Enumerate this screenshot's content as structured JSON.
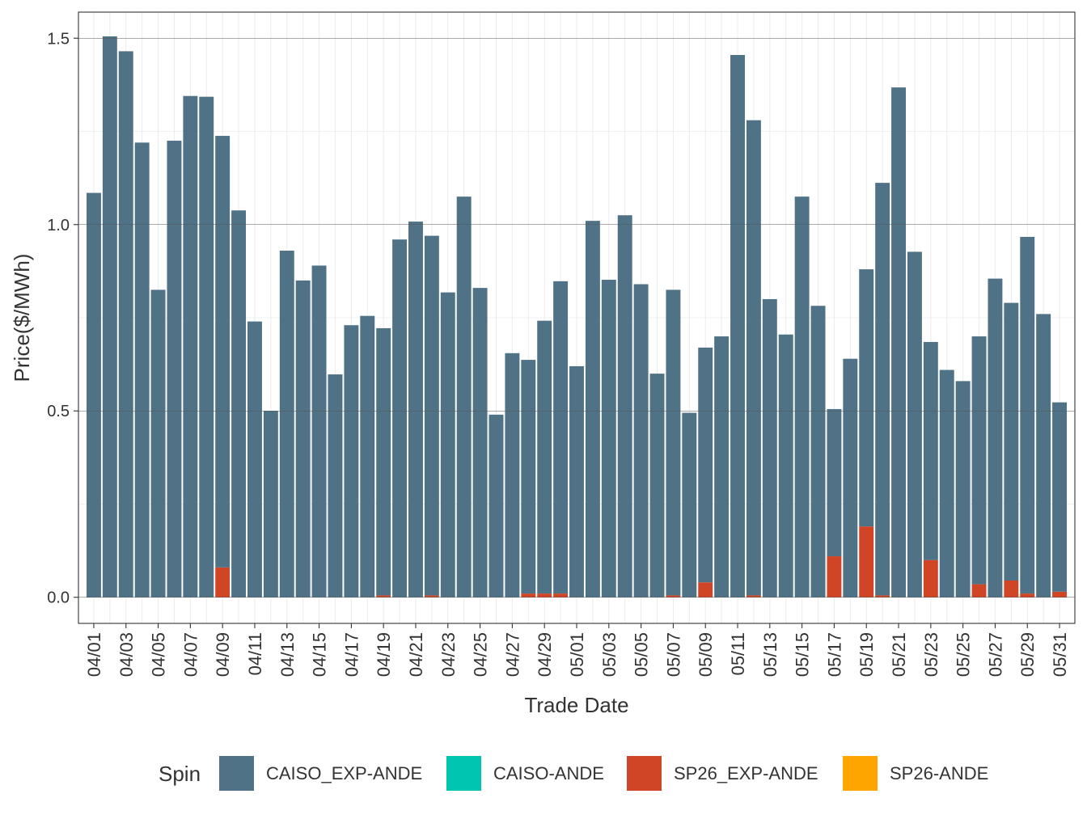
{
  "chart_data": {
    "type": "bar",
    "stacked": true,
    "title": "",
    "xlabel": "Trade Date",
    "ylabel": "Price($/MWh)",
    "ylim": [
      -0.07,
      1.57
    ],
    "yticks": [
      "0.0",
      "0.5",
      "1.0",
      "1.5"
    ],
    "grid": true,
    "legend_position": "bottom",
    "legend_title": "Spin",
    "categories": [
      "04/01",
      "04/02",
      "04/03",
      "04/04",
      "04/05",
      "04/06",
      "04/07",
      "04/08",
      "04/09",
      "04/10",
      "04/11",
      "04/12",
      "04/13",
      "04/14",
      "04/15",
      "04/16",
      "04/17",
      "04/18",
      "04/19",
      "04/20",
      "04/21",
      "04/22",
      "04/23",
      "04/24",
      "04/25",
      "04/26",
      "04/27",
      "04/28",
      "04/29",
      "04/30",
      "05/01",
      "05/02",
      "05/03",
      "05/04",
      "05/05",
      "05/06",
      "05/07",
      "05/08",
      "05/09",
      "05/10",
      "05/11",
      "05/12",
      "05/13",
      "05/14",
      "05/15",
      "05/16",
      "05/17",
      "05/18",
      "05/19",
      "05/20",
      "05/21",
      "05/22",
      "05/23",
      "05/24",
      "05/25",
      "05/26",
      "05/27",
      "05/28",
      "05/29",
      "05/30",
      "05/31"
    ],
    "tick_labels": [
      "04/01",
      "04/03",
      "04/05",
      "04/07",
      "04/09",
      "04/11",
      "04/13",
      "04/15",
      "04/17",
      "04/19",
      "04/21",
      "04/23",
      "04/25",
      "04/27",
      "04/29",
      "05/01",
      "05/03",
      "05/05",
      "05/07",
      "05/09",
      "05/11",
      "05/13",
      "05/15",
      "05/17",
      "05/19",
      "05/21",
      "05/23",
      "05/25",
      "05/27",
      "05/29",
      "05/31"
    ],
    "totals": [
      1.085,
      1.505,
      1.465,
      1.22,
      0.825,
      1.225,
      1.345,
      1.343,
      1.238,
      1.038,
      0.74,
      0.5,
      0.93,
      0.85,
      0.89,
      0.598,
      0.73,
      0.755,
      0.722,
      0.96,
      1.008,
      0.97,
      0.818,
      1.075,
      0.83,
      0.49,
      0.655,
      0.637,
      0.742,
      0.848,
      0.62,
      1.01,
      0.852,
      1.025,
      0.84,
      0.6,
      0.825,
      0.495,
      0.67,
      0.7,
      1.455,
      1.28,
      0.8,
      0.705,
      1.075,
      0.782,
      0.505,
      0.64,
      0.88,
      1.112,
      1.368,
      0.927,
      0.685,
      0.61,
      0.58,
      0.7,
      0.855,
      0.79,
      0.967,
      0.76,
      0.523
    ],
    "series": [
      {
        "name": "CAISO_EXP-ANDE",
        "color": "#4f7286",
        "values": [
          1.085,
          1.505,
          1.465,
          1.22,
          0.825,
          1.225,
          1.345,
          1.343,
          1.158,
          1.038,
          0.74,
          0.5,
          0.93,
          0.85,
          0.89,
          0.598,
          0.73,
          0.755,
          0.717,
          0.96,
          1.008,
          0.965,
          0.818,
          1.075,
          0.83,
          0.49,
          0.655,
          0.627,
          0.732,
          0.838,
          0.62,
          1.01,
          0.852,
          1.025,
          0.84,
          0.6,
          0.82,
          0.495,
          0.63,
          0.7,
          1.455,
          1.275,
          0.8,
          0.705,
          1.075,
          0.782,
          0.395,
          0.64,
          0.69,
          1.107,
          1.368,
          0.927,
          0.585,
          0.61,
          0.58,
          0.665,
          0.855,
          0.745,
          0.957,
          0.76,
          0.508
        ]
      },
      {
        "name": "CAISO-ANDE",
        "color": "#00c5b0",
        "values": [
          0,
          0,
          0,
          0,
          0,
          0,
          0,
          0,
          0,
          0,
          0,
          0,
          0,
          0,
          0,
          0,
          0,
          0,
          0,
          0,
          0,
          0,
          0,
          0,
          0,
          0,
          0,
          0,
          0,
          0,
          0,
          0,
          0,
          0,
          0,
          0,
          0,
          0,
          0,
          0,
          0,
          0,
          0,
          0,
          0,
          0,
          0,
          0,
          0,
          0,
          0,
          0,
          0,
          0,
          0,
          0,
          0,
          0,
          0,
          0,
          0
        ]
      },
      {
        "name": "SP26_EXP-ANDE",
        "color": "#d04525",
        "values": [
          0,
          0,
          0,
          0,
          0,
          0,
          0,
          0,
          0.08,
          0,
          0,
          0,
          0,
          0,
          0,
          0,
          0,
          0,
          0.005,
          0,
          0,
          0.005,
          0,
          0,
          0,
          0,
          0,
          0.01,
          0.01,
          0.01,
          0,
          0,
          0,
          0,
          0,
          0,
          0.005,
          0,
          0.04,
          0,
          0,
          0.005,
          0,
          0,
          0,
          0,
          0.11,
          0,
          0.19,
          0.005,
          0,
          0,
          0.1,
          0,
          0,
          0.035,
          0,
          0.045,
          0.01,
          0,
          0.015
        ]
      },
      {
        "name": "SP26-ANDE",
        "color": "#ffa500",
        "values": [
          0,
          0,
          0,
          0,
          0,
          0,
          0,
          0,
          0,
          0,
          0,
          0,
          0,
          0,
          0,
          0,
          0,
          0,
          0,
          0,
          0,
          0,
          0,
          0,
          0,
          0,
          0,
          0,
          0,
          0,
          0,
          0,
          0,
          0,
          0,
          0,
          0,
          0,
          0,
          0,
          0,
          0,
          0,
          0,
          0,
          0,
          0,
          0,
          0,
          0,
          0,
          0,
          0,
          0,
          0,
          0,
          0,
          0,
          0,
          0,
          0
        ]
      }
    ]
  }
}
